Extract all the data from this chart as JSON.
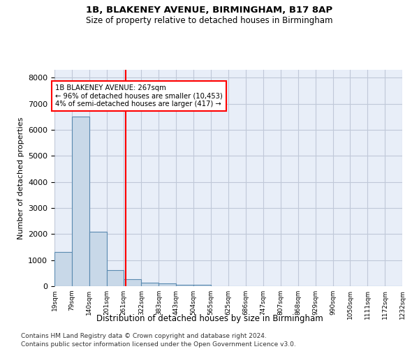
{
  "title1": "1B, BLAKENEY AVENUE, BIRMINGHAM, B17 8AP",
  "title2": "Size of property relative to detached houses in Birmingham",
  "xlabel": "Distribution of detached houses by size in Birmingham",
  "ylabel": "Number of detached properties",
  "footnote1": "Contains HM Land Registry data © Crown copyright and database right 2024.",
  "footnote2": "Contains public sector information licensed under the Open Government Licence v3.0.",
  "bar_color": "#c8d8e8",
  "bar_edge_color": "#5a8ab0",
  "grid_color": "#c0c8d8",
  "background_color": "#e8eef8",
  "vline_x": 267,
  "vline_color": "red",
  "annotation_text": "1B BLAKENEY AVENUE: 267sqm\n← 96% of detached houses are smaller (10,453)\n4% of semi-detached houses are larger (417) →",
  "annotation_box_color": "red",
  "annotation_text_color": "black",
  "bin_edges": [
    19,
    79,
    140,
    201,
    261,
    322,
    383,
    443,
    504,
    565,
    625,
    686,
    747,
    807,
    868,
    929,
    990,
    1050,
    1111,
    1172,
    1232
  ],
  "bar_heights": [
    1300,
    6500,
    2080,
    620,
    255,
    140,
    95,
    65,
    65,
    0,
    0,
    0,
    0,
    0,
    0,
    0,
    0,
    0,
    0,
    0
  ],
  "ylim": [
    0,
    8300
  ],
  "yticks": [
    0,
    1000,
    2000,
    3000,
    4000,
    5000,
    6000,
    7000,
    8000
  ]
}
